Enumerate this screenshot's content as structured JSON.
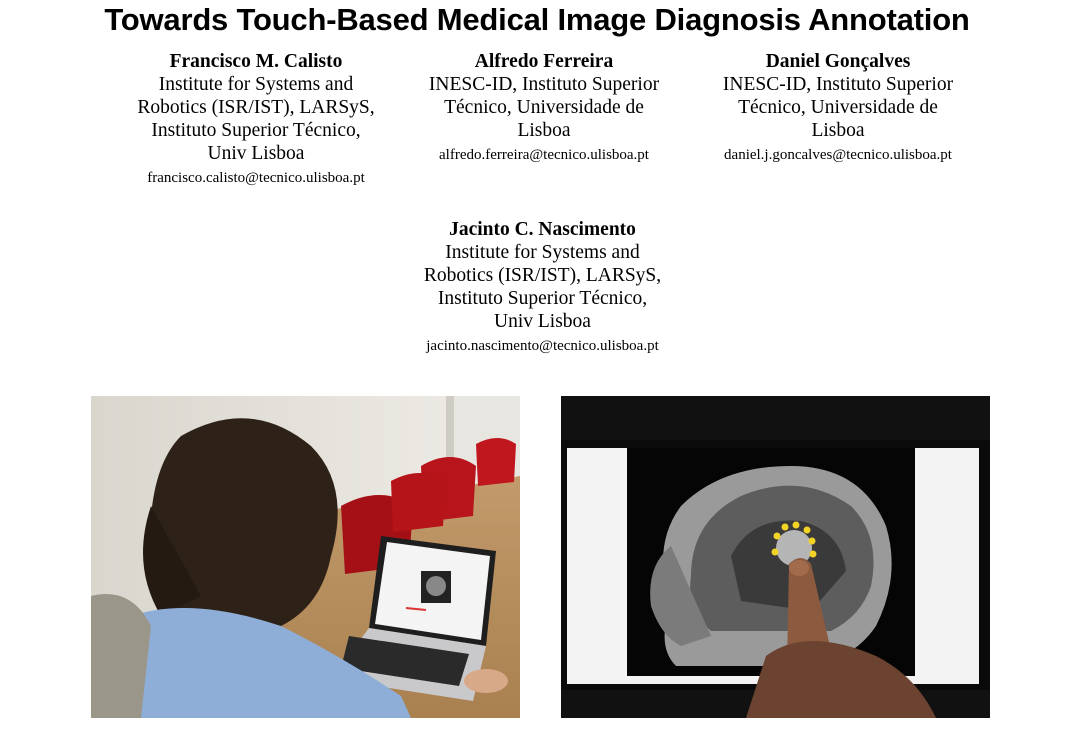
{
  "paper": {
    "title": "Towards Touch-Based Medical Image Diagnosis Annotation",
    "authors": [
      {
        "name": "Francisco M. Calisto",
        "affiliation_lines": [
          "Institute for Systems and",
          "Robotics (ISR/IST), LARSyS,",
          "Instituto Superior Técnico,",
          "Univ Lisboa"
        ],
        "email": "francisco.calisto@tecnico.ulisboa.pt"
      },
      {
        "name": "Alfredo Ferreira",
        "affiliation_lines": [
          "INESC-ID, Instituto Superior",
          "Técnico, Universidade de",
          "Lisboa"
        ],
        "email": "alfredo.ferreira@tecnico.ulisboa.pt"
      },
      {
        "name": "Daniel Gonçalves",
        "affiliation_lines": [
          "INESC-ID, Instituto Superior",
          "Técnico, Universidade de",
          "Lisboa"
        ],
        "email": "daniel.j.goncalves@tecnico.ulisboa.pt"
      },
      {
        "name": "Jacinto C. Nascimento",
        "affiliation_lines": [
          "Institute for Systems and",
          "Robotics (ISR/IST), LARSyS,",
          "Instituto Superior Técnico,",
          "Univ Lisboa"
        ],
        "email": "jacinto.nascimento@tecnico.ulisboa.pt"
      }
    ]
  },
  "figures": {
    "left_photo": "person-using-laptop-photo",
    "right_photo": "touch-annotation-mri-photo",
    "annotation_color": "#f2d326"
  }
}
